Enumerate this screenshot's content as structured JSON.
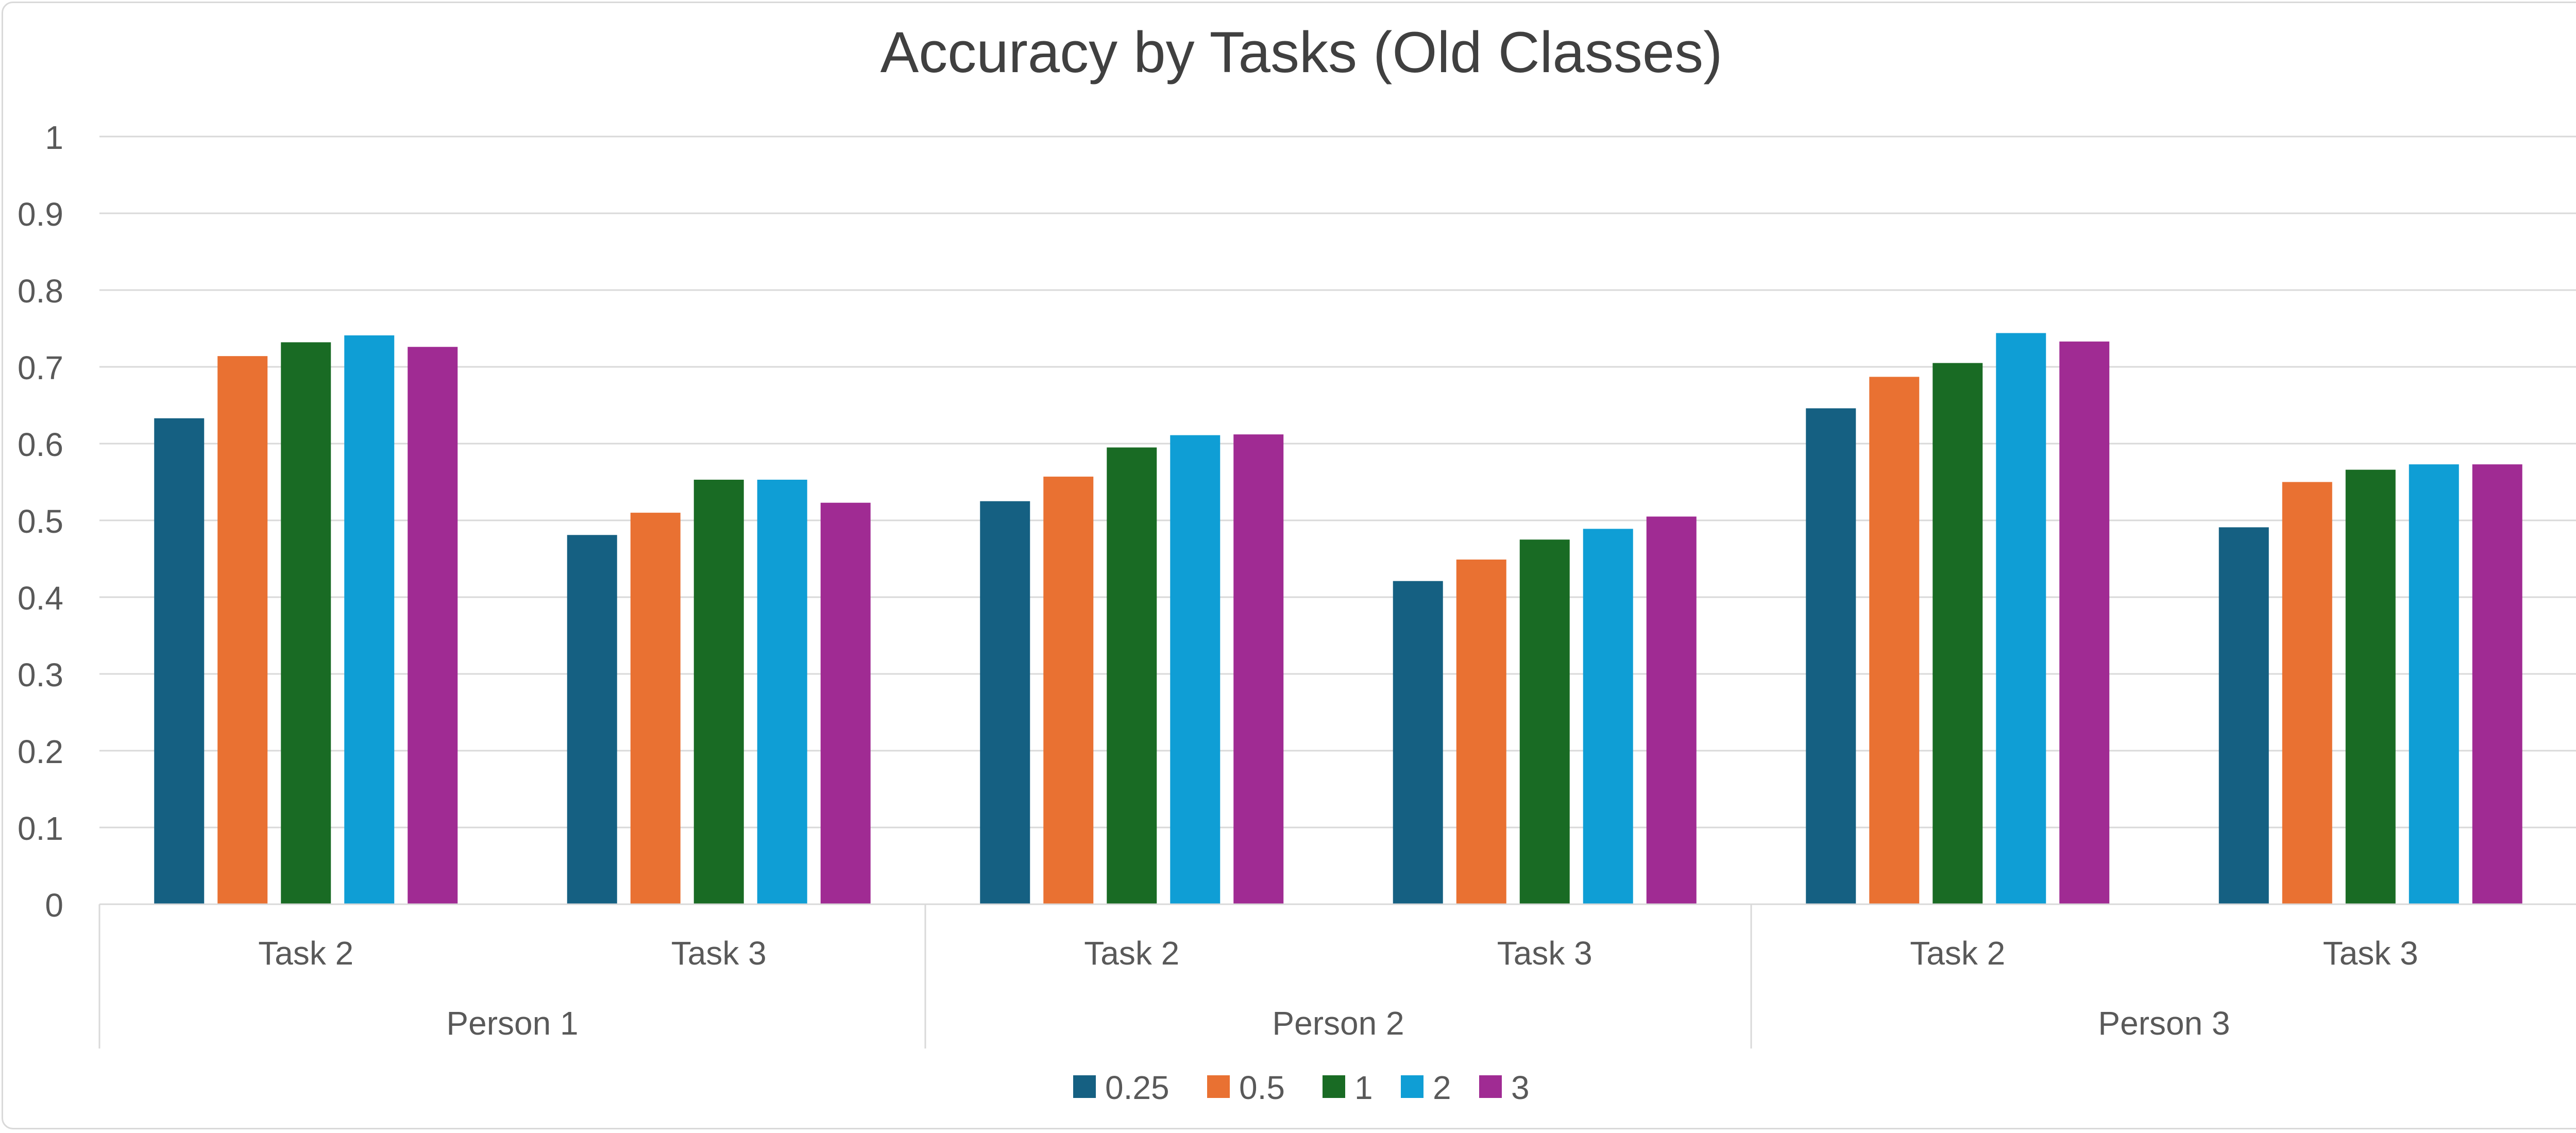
{
  "chart_data": {
    "type": "bar",
    "title": "Accuracy by Tasks (Old Classes)",
    "xlabel": "",
    "ylabel": "",
    "ylim": [
      0,
      1
    ],
    "yticks": [
      "0",
      "0.1",
      "0.2",
      "0.3",
      "0.4",
      "0.5",
      "0.6",
      "0.7",
      "0.8",
      "0.9",
      "1"
    ],
    "grid": true,
    "legend_position": "bottom",
    "groups": [
      {
        "label": "Person 1",
        "categories": [
          "Task 2",
          "Task 3"
        ]
      },
      {
        "label": "Person 2",
        "categories": [
          "Task 2",
          "Task 3"
        ]
      },
      {
        "label": "Person 3",
        "categories": [
          "Task 2",
          "Task 3"
        ]
      }
    ],
    "categories": [
      "Task 2",
      "Task 3",
      "Task 2",
      "Task 3",
      "Task 2",
      "Task 3"
    ],
    "series": [
      {
        "name": "0.25",
        "color": "#156082",
        "values": [
          0.633,
          0.481,
          0.525,
          0.421,
          0.646,
          0.491
        ]
      },
      {
        "name": "0.5",
        "color": "#e97132",
        "values": [
          0.714,
          0.51,
          0.557,
          0.449,
          0.687,
          0.55
        ]
      },
      {
        "name": "1",
        "color": "#196b24",
        "values": [
          0.732,
          0.553,
          0.595,
          0.475,
          0.705,
          0.566
        ]
      },
      {
        "name": "2",
        "color": "#0f9ed5",
        "values": [
          0.741,
          0.553,
          0.611,
          0.489,
          0.744,
          0.573
        ]
      },
      {
        "name": "3",
        "color": "#a02b93",
        "values": [
          0.726,
          0.523,
          0.612,
          0.505,
          0.733,
          0.573
        ]
      }
    ]
  }
}
